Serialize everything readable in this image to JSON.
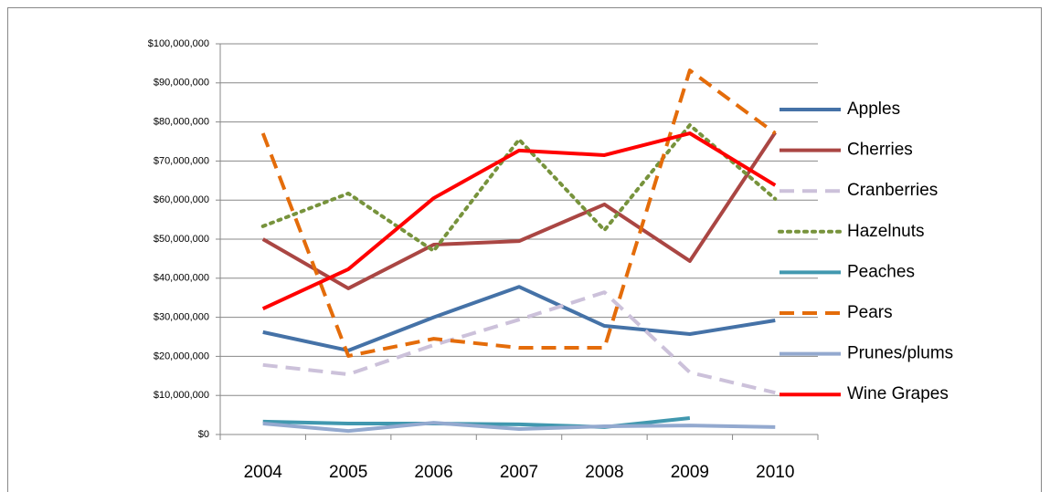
{
  "chart_data": {
    "type": "line",
    "categories": [
      "2004",
      "2005",
      "2006",
      "2007",
      "2008",
      "2009",
      "2010"
    ],
    "series": [
      {
        "name": "Apples",
        "color": "#4572a7",
        "dash": "solid",
        "values": [
          26200000,
          21500000,
          30000000,
          37800000,
          27800000,
          25700000,
          29200000
        ]
      },
      {
        "name": "Cherries",
        "color": "#aa4643",
        "dash": "solid",
        "values": [
          50000000,
          37400000,
          48600000,
          49500000,
          58900000,
          44400000,
          77300000
        ]
      },
      {
        "name": "Cranberries",
        "color": "#ccc1da",
        "dash": "dashed",
        "values": [
          17800000,
          15400000,
          22900000,
          29400000,
          36400000,
          15900000,
          10700000
        ]
      },
      {
        "name": "Hazelnuts",
        "color": "#77933c",
        "dash": "dotted",
        "values": [
          53300000,
          61700000,
          47000000,
          75500000,
          52300000,
          79200000,
          60300000
        ]
      },
      {
        "name": "Peaches",
        "color": "#4198af",
        "dash": "solid",
        "values": [
          3300000,
          2800000,
          2800000,
          2600000,
          1900000,
          4200000,
          null
        ]
      },
      {
        "name": "Pears",
        "color": "#e46c0a",
        "dash": "dashed",
        "values": [
          77100000,
          20100000,
          24500000,
          22200000,
          22200000,
          93200000,
          77100000
        ]
      },
      {
        "name": "Prunes/plums",
        "color": "#93a9cf",
        "dash": "solid",
        "values": [
          2800000,
          900000,
          3000000,
          1400000,
          2100000,
          2300000,
          1900000
        ]
      },
      {
        "name": "Wine Grapes",
        "color": "#ff0000",
        "dash": "solid",
        "values": [
          32200000,
          42300000,
          60500000,
          72700000,
          71500000,
          77100000,
          63800000
        ]
      }
    ],
    "ylim": [
      0,
      100000000
    ],
    "yticks": [
      {
        "value": 0,
        "label": "$0"
      },
      {
        "value": 10000000,
        "label": "$10,000,000"
      },
      {
        "value": 20000000,
        "label": "$20,000,000"
      },
      {
        "value": 30000000,
        "label": "$30,000,000"
      },
      {
        "value": 40000000,
        "label": "$40,000,000"
      },
      {
        "value": 50000000,
        "label": "$50,000,000"
      },
      {
        "value": 60000000,
        "label": "$60,000,000"
      },
      {
        "value": 70000000,
        "label": "$70,000,000"
      },
      {
        "value": 80000000,
        "label": "$80,000,000"
      },
      {
        "value": 90000000,
        "label": "$90,000,000"
      },
      {
        "value": 100000000,
        "label": "$100,000,000"
      }
    ],
    "grid": true,
    "legend": "right"
  }
}
